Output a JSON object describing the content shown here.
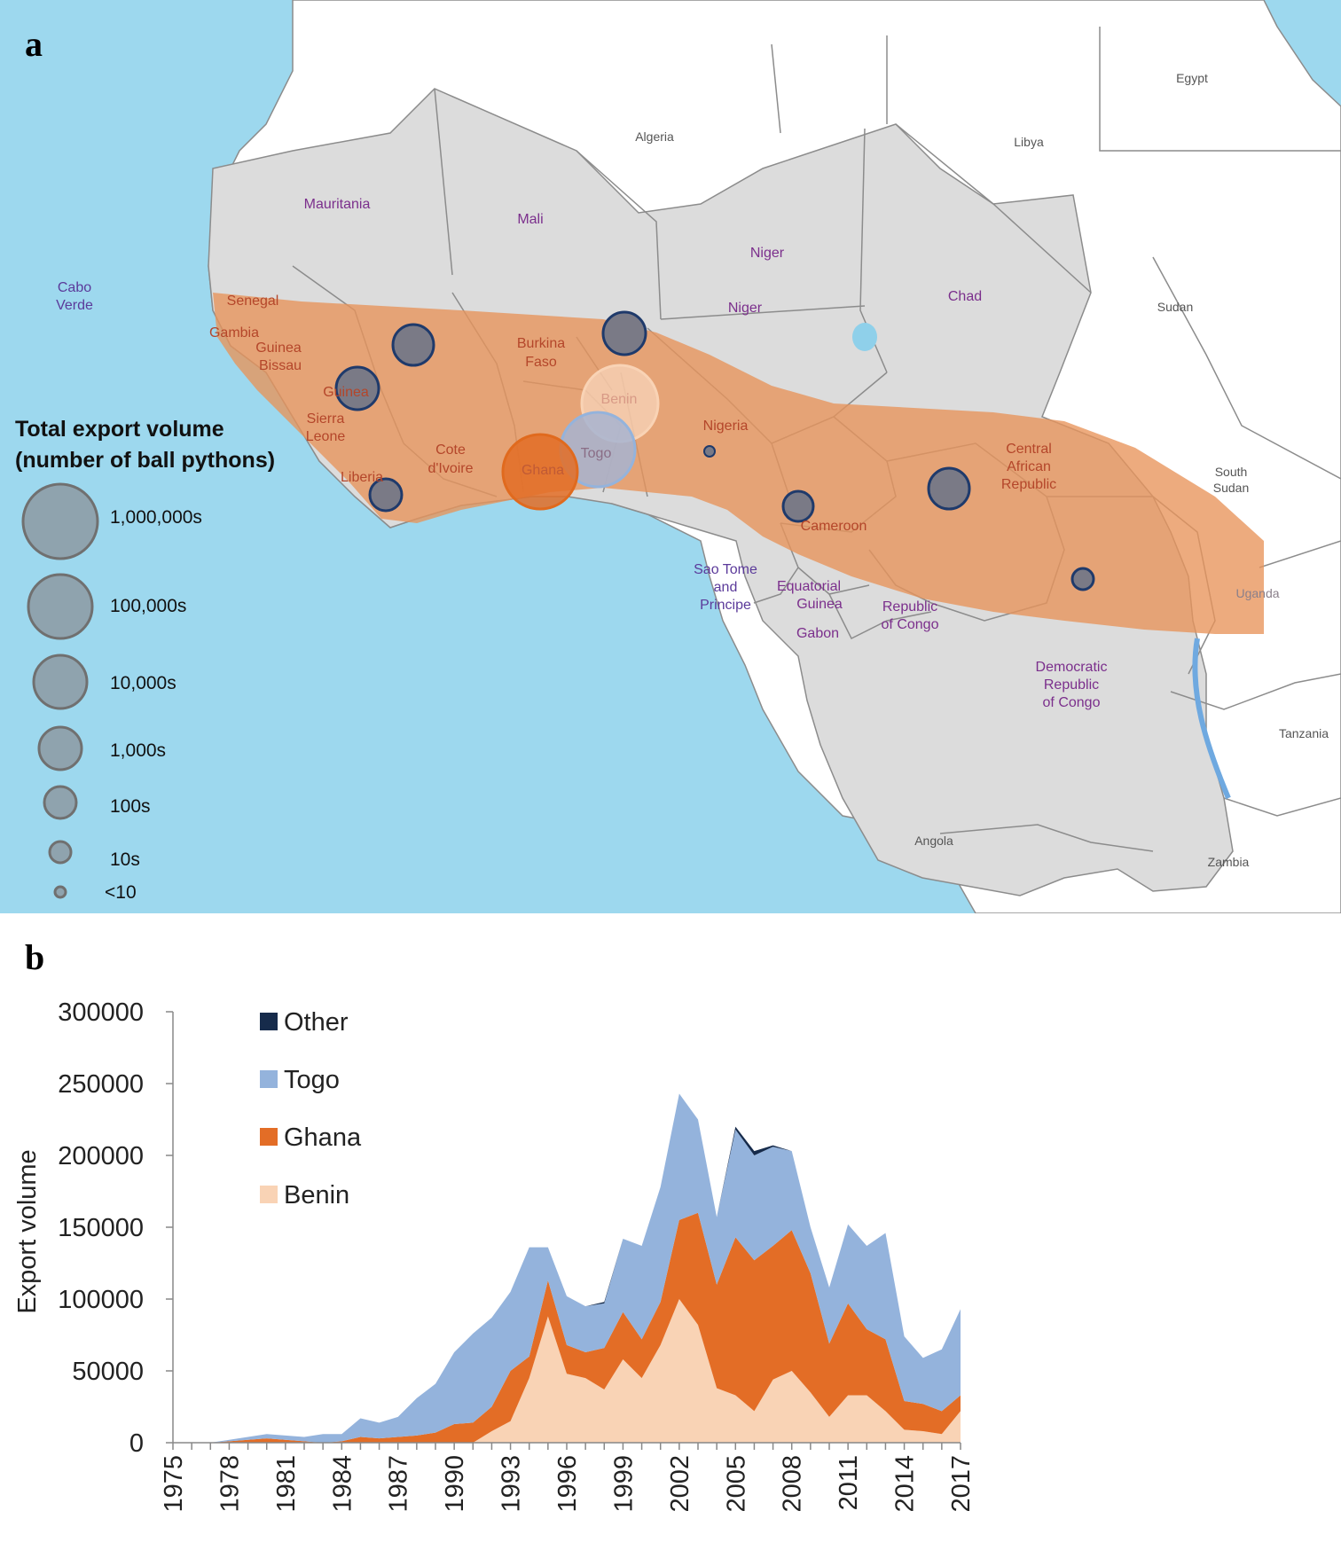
{
  "panels": {
    "a": "a",
    "b": "b"
  },
  "colors": {
    "ocean": "#9dd8ee",
    "land": "#dcdcdc",
    "outside_land": "#ffffff",
    "border": "#8c8c8c",
    "range": "#e8935a",
    "marker_fill": "#7a7a86",
    "marker_stroke": "#1f3a6b",
    "benin": "#f9d3b5",
    "ghana": "#e36d26",
    "togo": "#94b3dc",
    "other": "#162b4b",
    "country_label": "#7b2f8c",
    "range_label": "#b4462a",
    "legend_marker": "#8fa3ae"
  },
  "map": {
    "legend_title_line1": "Total export volume",
    "legend_title_line2": "(number of ball pythons)",
    "legend_items": [
      "1,000,000s",
      "100,000s",
      "10,000s",
      "1,000s",
      "100s",
      "10s",
      "<10"
    ],
    "labels": {
      "egypt": "Egypt",
      "algeria": "Algeria",
      "libya": "Libya",
      "mauritania": "Mauritania",
      "mali": "Mali",
      "niger1": "Niger",
      "niger2": "Niger",
      "chad": "Chad",
      "sudan": "Sudan",
      "cabo1": "Cabo",
      "cabo2": "Verde",
      "senegal": "Senegal",
      "gambia": "Gambia",
      "guinea_bissau1": "Guinea",
      "guinea_bissau2": "Bissau",
      "guinea": "Guinea",
      "sierra1": "Sierra",
      "sierra2": "Leone",
      "liberia": "Liberia",
      "cote1": "Cote",
      "cote2": "d'Ivoire",
      "burkina1": "Burkina",
      "burkina2": "Faso",
      "ghana": "Ghana",
      "togo": "Togo",
      "benin": "Benin",
      "nigeria": "Nigeria",
      "car1": "Central",
      "car2": "African",
      "car3": "Republic",
      "south_sudan1": "South",
      "south_sudan2": "Sudan",
      "cameroon": "Cameroon",
      "stp1": "Sao Tome",
      "stp2": "and",
      "stp3": "Principe",
      "eqg1": "Equatorial",
      "eqg2": "Guinea",
      "gabon": "Gabon",
      "roc1": "Republic",
      "roc2": "of Congo",
      "uganda": "Uganda",
      "drc1": "Democratic",
      "drc2": "Republic",
      "drc3": "of Congo",
      "tanzania": "Tanzania",
      "angola": "Angola",
      "zambia": "Zambia"
    }
  },
  "chart_data": {
    "type": "area",
    "stacked": true,
    "ylabel": "Export volume",
    "xlabel": "",
    "ylim": [
      0,
      300000
    ],
    "yticks": [
      "0",
      "50000",
      "100000",
      "150000",
      "200000",
      "250000",
      "300000"
    ],
    "xtick_labels": [
      "1975",
      "1978",
      "1981",
      "1984",
      "1987",
      "1990",
      "1993",
      "1996",
      "1999",
      "2002",
      "2005",
      "2008",
      "2011",
      "2014",
      "2017"
    ],
    "x": [
      1975,
      1976,
      1977,
      1978,
      1979,
      1980,
      1981,
      1982,
      1983,
      1984,
      1985,
      1986,
      1987,
      1988,
      1989,
      1990,
      1991,
      1992,
      1993,
      1994,
      1995,
      1996,
      1997,
      1998,
      1999,
      2000,
      2001,
      2002,
      2003,
      2004,
      2005,
      2006,
      2007,
      2008,
      2009,
      2010,
      2011,
      2012,
      2013,
      2014,
      2015,
      2016,
      2017
    ],
    "legend_position": "top-left",
    "series": [
      {
        "name": "Benin",
        "values": [
          0,
          0,
          0,
          0,
          0,
          0,
          0,
          0,
          0,
          0,
          0,
          0,
          0,
          0,
          0,
          0,
          0,
          8000,
          15000,
          45000,
          88000,
          48000,
          45000,
          37000,
          58000,
          45000,
          68000,
          100000,
          82000,
          38000,
          33000,
          22000,
          44000,
          50000,
          35000,
          18000,
          33000,
          33000,
          22000,
          9000,
          8000,
          6000,
          22000
        ]
      },
      {
        "name": "Ghana",
        "values": [
          0,
          0,
          0,
          1000,
          2000,
          3000,
          2000,
          1000,
          0,
          1000,
          4000,
          3000,
          4000,
          5000,
          7000,
          13000,
          14000,
          17000,
          35000,
          15000,
          25000,
          20000,
          18000,
          29000,
          33000,
          27000,
          30000,
          55000,
          78000,
          72000,
          110000,
          105000,
          93000,
          98000,
          83000,
          51000,
          64000,
          46000,
          50000,
          20000,
          19000,
          16000,
          11000
        ]
      },
      {
        "name": "Togo",
        "values": [
          0,
          0,
          0,
          1000,
          2000,
          3000,
          3000,
          3000,
          6000,
          5000,
          13000,
          11000,
          14000,
          26000,
          34000,
          50000,
          62000,
          62000,
          55000,
          76000,
          23000,
          34000,
          32000,
          31000,
          51000,
          65000,
          80000,
          88000,
          65000,
          47000,
          75000,
          73000,
          69000,
          55000,
          32000,
          39000,
          55000,
          58000,
          74000,
          45000,
          32000,
          43000,
          60000
        ]
      },
      {
        "name": "Other",
        "values": [
          0,
          0,
          0,
          0,
          0,
          0,
          0,
          0,
          0,
          0,
          0,
          0,
          0,
          0,
          0,
          0,
          0,
          0,
          0,
          0,
          0,
          0,
          0,
          1000,
          0,
          0,
          0,
          0,
          0,
          0,
          2000,
          3000,
          1000,
          0,
          0,
          0,
          0,
          0,
          0,
          0,
          0,
          0,
          0
        ]
      }
    ]
  }
}
